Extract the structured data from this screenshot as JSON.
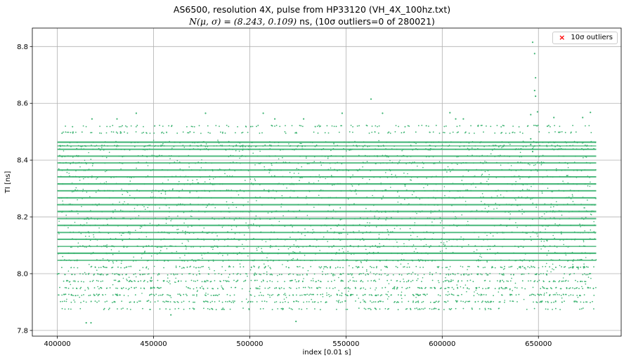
{
  "chart_data": {
    "type": "scatter",
    "title_line1": "AS6500, resolution 4X, pulse from HP33120 (VH_4X_100hz.txt)",
    "title_line2_math": "N(μ, σ) = (8.243, 0.109)",
    "title_line2_text": " ns, (10σ outliers=0 of 280021)",
    "xlabel": "index [0.01 s]",
    "ylabel": "TI [ns]",
    "xlim": [
      387000,
      693000
    ],
    "ylim": [
      7.78,
      8.865
    ],
    "xticks": [
      400000,
      450000,
      500000,
      550000,
      600000,
      650000
    ],
    "yticks": [
      7.8,
      8.0,
      8.2,
      8.4,
      8.6,
      8.8
    ],
    "grid": true,
    "point_color": "#3cb371",
    "x_range": [
      400000,
      680021
    ],
    "n_points": 280021,
    "mean": 8.243,
    "sigma": 0.109,
    "bands": [
      {
        "y": 7.876,
        "density": 0.04
      },
      {
        "y": 7.901,
        "density": 0.25
      },
      {
        "y": 7.925,
        "density": 0.15
      },
      {
        "y": 7.949,
        "density": 0.25
      },
      {
        "y": 7.974,
        "density": 0.35
      },
      {
        "y": 7.998,
        "density": 0.35
      },
      {
        "y": 8.023,
        "density": 0.45
      },
      {
        "y": 8.047,
        "density": 0.75
      },
      {
        "y": 8.072,
        "density": 1.0
      },
      {
        "y": 8.096,
        "density": 0.7
      },
      {
        "y": 8.121,
        "density": 0.9
      },
      {
        "y": 8.145,
        "density": 0.9
      },
      {
        "y": 8.17,
        "density": 1.0
      },
      {
        "y": 8.194,
        "density": 0.9
      },
      {
        "y": 8.219,
        "density": 1.0
      },
      {
        "y": 8.243,
        "density": 1.0
      },
      {
        "y": 8.267,
        "density": 1.0
      },
      {
        "y": 8.292,
        "density": 0.9
      },
      {
        "y": 8.316,
        "density": 1.0
      },
      {
        "y": 8.341,
        "density": 0.9
      },
      {
        "y": 8.365,
        "density": 1.0
      },
      {
        "y": 8.39,
        "density": 0.85
      },
      {
        "y": 8.414,
        "density": 0.9
      },
      {
        "y": 8.438,
        "density": 0.9
      },
      {
        "y": 8.45,
        "density": 0.6
      },
      {
        "y": 8.463,
        "density": 1.0
      },
      {
        "y": 8.497,
        "density": 0.06
      },
      {
        "y": 8.52,
        "density": 0.03
      }
    ],
    "sparse_points": [
      {
        "x": 415000,
        "y": 7.827
      },
      {
        "x": 417500,
        "y": 7.827
      },
      {
        "x": 459000,
        "y": 7.855
      },
      {
        "x": 524000,
        "y": 7.832
      },
      {
        "x": 563000,
        "y": 8.615
      },
      {
        "x": 569000,
        "y": 8.565
      },
      {
        "x": 548000,
        "y": 8.565
      },
      {
        "x": 441000,
        "y": 8.565
      },
      {
        "x": 477000,
        "y": 8.565
      },
      {
        "x": 507000,
        "y": 8.565
      },
      {
        "x": 604000,
        "y": 8.567
      },
      {
        "x": 647000,
        "y": 8.815
      },
      {
        "x": 648000,
        "y": 8.775
      },
      {
        "x": 648500,
        "y": 8.69
      },
      {
        "x": 648000,
        "y": 8.645
      },
      {
        "x": 648500,
        "y": 8.625
      },
      {
        "x": 649500,
        "y": 8.57
      },
      {
        "x": 646000,
        "y": 8.56
      },
      {
        "x": 658000,
        "y": 8.55
      },
      {
        "x": 673000,
        "y": 8.55
      },
      {
        "x": 677000,
        "y": 8.568
      },
      {
        "x": 418000,
        "y": 8.545
      },
      {
        "x": 431000,
        "y": 8.545
      },
      {
        "x": 528000,
        "y": 8.545
      },
      {
        "x": 607000,
        "y": 8.545
      },
      {
        "x": 611000,
        "y": 8.545
      },
      {
        "x": 513000,
        "y": 8.545
      },
      {
        "x": 646000,
        "y": 8.475
      },
      {
        "x": 646000,
        "y": 8.455
      },
      {
        "x": 647000,
        "y": 8.44
      },
      {
        "x": 647000,
        "y": 8.43
      }
    ],
    "legend": {
      "label": "10σ outliers",
      "marker": "x",
      "color": "#ff0000",
      "position": "upper right"
    }
  }
}
